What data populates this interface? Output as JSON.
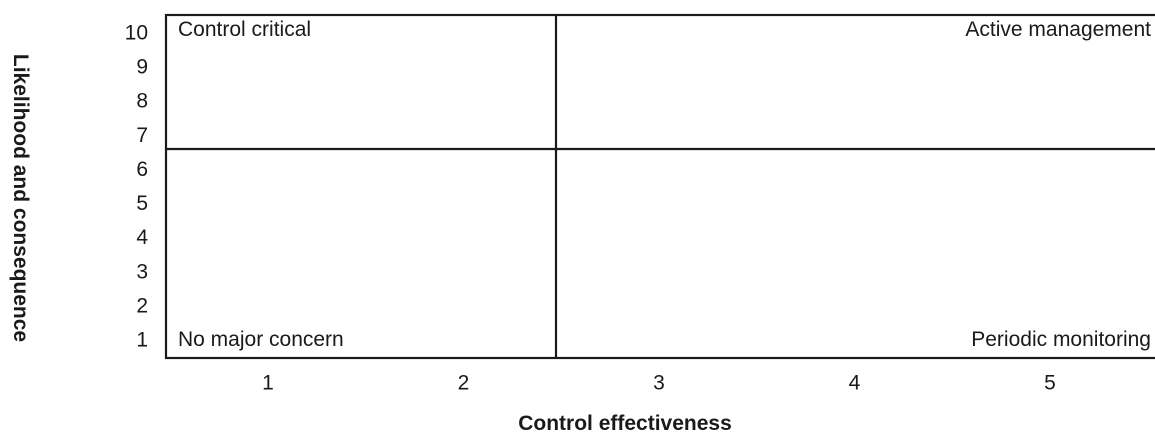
{
  "matrix": {
    "y_axis_label": "Likelihood and consequence",
    "x_axis_label": "Control effectiveness",
    "y_ticks": [
      "10",
      "9",
      "8",
      "7",
      "6",
      "5",
      "4",
      "3",
      "2",
      "1"
    ],
    "x_ticks": [
      "1",
      "2",
      "3",
      "4",
      "5"
    ],
    "quadrants": {
      "top_left": "Control critical",
      "top_right": "Active management",
      "bottom_left": "No major concern",
      "bottom_right": "Periodic monitoring"
    },
    "line_color": "#1a1a1a"
  }
}
